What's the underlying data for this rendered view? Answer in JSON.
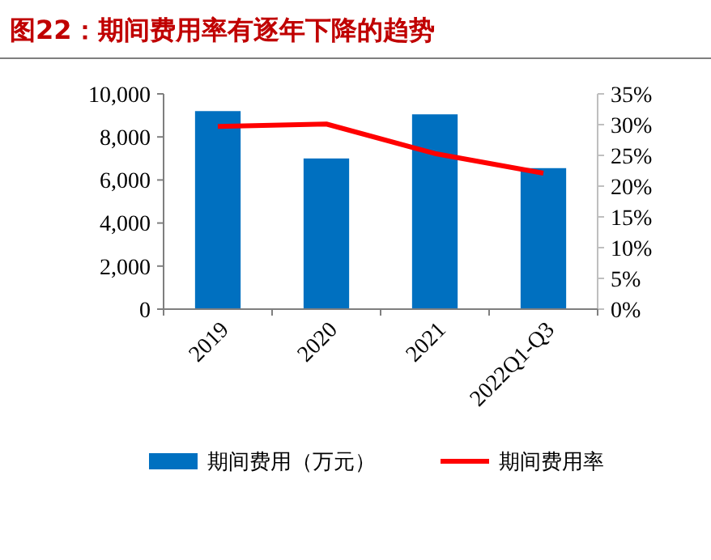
{
  "chart_data": {
    "type": "bar",
    "title": "图22：期间费用率有逐年下降的趋势",
    "categories": [
      "2019",
      "2020",
      "2021",
      "2022Q1-Q3"
    ],
    "series": [
      {
        "name": "期间费用（万元）",
        "color": "#0070c0",
        "values": [
          9200,
          7000,
          9050,
          6550
        ]
      },
      {
        "name": "期间费用率",
        "type": "line",
        "axis": "y2",
        "color": "#ff0000",
        "values": [
          29.7,
          30.1,
          25.3,
          22.1
        ]
      }
    ],
    "ylim": [
      0,
      10000
    ],
    "yticks": [
      {
        "value": 0,
        "label": "0"
      },
      {
        "value": 2000,
        "label": "2,000"
      },
      {
        "value": 4000,
        "label": "4,000"
      },
      {
        "value": 6000,
        "label": "6,000"
      },
      {
        "value": 8000,
        "label": "8,000"
      },
      {
        "value": 10000,
        "label": "10,000"
      }
    ],
    "y2lim": [
      0,
      35
    ],
    "y2ticks": [
      {
        "value": 0,
        "label": "0%"
      },
      {
        "value": 5,
        "label": "5%"
      },
      {
        "value": 10,
        "label": "10%"
      },
      {
        "value": 15,
        "label": "15%"
      },
      {
        "value": 20,
        "label": "20%"
      },
      {
        "value": 25,
        "label": "25%"
      },
      {
        "value": 30,
        "label": "30%"
      },
      {
        "value": 35,
        "label": "35%"
      }
    ],
    "legend": "bottom",
    "grid": false,
    "marker": "none",
    "line_style": "solid"
  }
}
